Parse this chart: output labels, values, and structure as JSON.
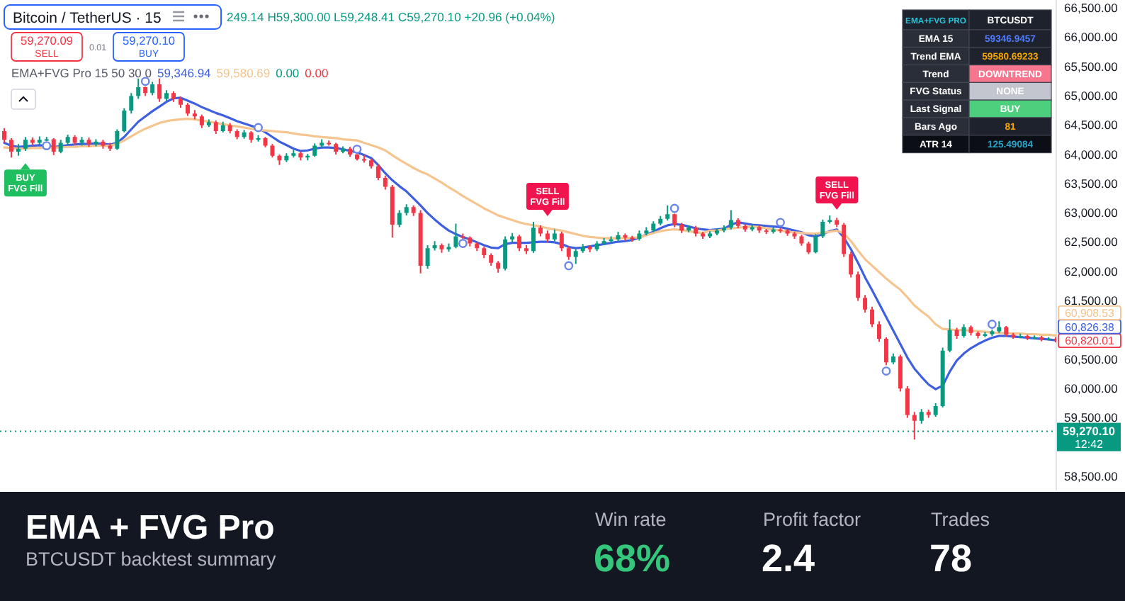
{
  "chart_data": [
    {
      "type": "candlestick",
      "title": "Bitcoin / TetherUS · 15",
      "categories": [
        null,
        null,
        null,
        null,
        null,
        null,
        null,
        null,
        null,
        null,
        null,
        null,
        null,
        null,
        null,
        null,
        null,
        null,
        null,
        null,
        null,
        null,
        null,
        null,
        null,
        null,
        null,
        null,
        null,
        null,
        null,
        null,
        null,
        null,
        null,
        null,
        null,
        null,
        null,
        null,
        null,
        null,
        null,
        null,
        null,
        null,
        null,
        null,
        null,
        null,
        null,
        null,
        null,
        null,
        null,
        null,
        null,
        null,
        null,
        null,
        null,
        null,
        null,
        null,
        null,
        null,
        null,
        null,
        null,
        null,
        null,
        null,
        null,
        null,
        null,
        null,
        null,
        null,
        null,
        null,
        null,
        null,
        null,
        null,
        null,
        null,
        null,
        null,
        null,
        null,
        null,
        null,
        null,
        null,
        null,
        null,
        null,
        null,
        null,
        null,
        null,
        null,
        null,
        null,
        null,
        null,
        null,
        null,
        null,
        null,
        null,
        null,
        null,
        null,
        null,
        null,
        null,
        null,
        null,
        null,
        null,
        null,
        null,
        null,
        null,
        null,
        null,
        null,
        null,
        null,
        null,
        null,
        null,
        null,
        null,
        null,
        null,
        null,
        null,
        null,
        null,
        null,
        null,
        null,
        null,
        null,
        null,
        null,
        null,
        null
      ],
      "ohlc": [
        [
          64400,
          64450,
          64200,
          64250
        ],
        [
          64250,
          64280,
          63950,
          64050
        ],
        [
          64050,
          64180,
          63980,
          64100
        ],
        [
          64100,
          64300,
          64060,
          64250
        ],
        [
          64250,
          64290,
          64150,
          64200
        ],
        [
          64200,
          64310,
          64170,
          64250
        ],
        [
          64250,
          64300,
          64230,
          64260
        ],
        [
          64260,
          64280,
          63990,
          64050
        ],
        [
          64050,
          64250,
          64020,
          64200
        ],
        [
          64200,
          64340,
          64170,
          64300
        ],
        [
          64300,
          64330,
          64160,
          64200
        ],
        [
          64200,
          64300,
          64150,
          64250
        ],
        [
          64250,
          64290,
          64130,
          64180
        ],
        [
          64180,
          64260,
          64140,
          64220
        ],
        [
          64220,
          64250,
          64100,
          64150
        ],
        [
          64150,
          64200,
          64060,
          64100
        ],
        [
          64100,
          64430,
          64080,
          64400
        ],
        [
          64400,
          64790,
          64380,
          64750
        ],
        [
          64750,
          65050,
          64700,
          65000
        ],
        [
          65000,
          65300,
          64950,
          65150
        ],
        [
          65150,
          65160,
          65000,
          65050
        ],
        [
          65050,
          65240,
          65010,
          65200
        ],
        [
          65200,
          65300,
          64900,
          64950
        ],
        [
          64950,
          65100,
          64920,
          65050
        ],
        [
          65050,
          65080,
          64900,
          64950
        ],
        [
          64950,
          64990,
          64800,
          64850
        ],
        [
          64850,
          64880,
          64660,
          64700
        ],
        [
          64700,
          64760,
          64600,
          64650
        ],
        [
          64650,
          64680,
          64450,
          64500
        ],
        [
          64500,
          64600,
          64470,
          64550
        ],
        [
          64550,
          64580,
          64350,
          64400
        ],
        [
          64400,
          64560,
          64380,
          64500
        ],
        [
          64500,
          64540,
          64360,
          64400
        ],
        [
          64400,
          64430,
          64260,
          64300
        ],
        [
          64300,
          64420,
          64270,
          64380
        ],
        [
          64380,
          64400,
          64200,
          64250
        ],
        [
          64250,
          64330,
          64220,
          64280
        ],
        [
          64280,
          64300,
          64120,
          64150
        ],
        [
          64150,
          64180,
          63950,
          63980
        ],
        [
          63980,
          64000,
          63820,
          63900
        ],
        [
          63900,
          64020,
          63870,
          63980
        ],
        [
          63980,
          64080,
          63950,
          64020
        ],
        [
          64020,
          64050,
          63900,
          63950
        ],
        [
          63950,
          64010,
          63900,
          63980
        ],
        [
          63980,
          64190,
          63960,
          64150
        ],
        [
          64150,
          64260,
          64120,
          64200
        ],
        [
          64200,
          64240,
          64150,
          64180
        ],
        [
          64180,
          64200,
          64000,
          64050
        ],
        [
          64050,
          64140,
          64020,
          64100
        ],
        [
          64100,
          64130,
          63960,
          64000
        ],
        [
          64000,
          64010,
          63900,
          63920
        ],
        [
          63920,
          63990,
          63860,
          63900
        ],
        [
          63900,
          63930,
          63760,
          63800
        ],
        [
          63800,
          63830,
          63560,
          63600
        ],
        [
          63600,
          63640,
          63400,
          63450
        ],
        [
          63450,
          63480,
          62580,
          62800
        ],
        [
          62800,
          63050,
          62760,
          63000
        ],
        [
          63000,
          63150,
          62960,
          63100
        ],
        [
          63100,
          63130,
          62950,
          63000
        ],
        [
          63000,
          63050,
          61970,
          62100
        ],
        [
          62100,
          62450,
          62050,
          62400
        ],
        [
          62400,
          62520,
          62360,
          62450
        ],
        [
          62450,
          62480,
          62320,
          62380
        ],
        [
          62380,
          62480,
          62340,
          62420
        ],
        [
          62420,
          62820,
          62400,
          62600
        ],
        [
          62600,
          62650,
          62560,
          62580
        ],
        [
          62580,
          62600,
          62430,
          62480
        ],
        [
          62480,
          62500,
          62350,
          62400
        ],
        [
          62400,
          62430,
          62230,
          62280
        ],
        [
          62280,
          62310,
          62100,
          62150
        ],
        [
          62150,
          62180,
          61980,
          62050
        ],
        [
          62050,
          62600,
          62020,
          62550
        ],
        [
          62550,
          62660,
          62500,
          62600
        ],
        [
          62600,
          62630,
          62350,
          62400
        ],
        [
          62400,
          62450,
          62300,
          62350
        ],
        [
          62350,
          62850,
          62320,
          62750
        ],
        [
          62750,
          62790,
          62600,
          62650
        ],
        [
          62650,
          62700,
          62500,
          62550
        ],
        [
          62550,
          62720,
          62520,
          62650
        ],
        [
          62650,
          62680,
          62350,
          62400
        ],
        [
          62400,
          62430,
          62200,
          62250
        ],
        [
          62250,
          62380,
          62130,
          62350
        ],
        [
          62350,
          62470,
          62320,
          62420
        ],
        [
          62420,
          62450,
          62330,
          62380
        ],
        [
          62380,
          62520,
          62350,
          62480
        ],
        [
          62480,
          62570,
          62450,
          62520
        ],
        [
          62520,
          62600,
          62490,
          62550
        ],
        [
          62550,
          62680,
          62520,
          62620
        ],
        [
          62620,
          62650,
          62530,
          62580
        ],
        [
          62580,
          62610,
          62510,
          62560
        ],
        [
          62560,
          62700,
          62530,
          62650
        ],
        [
          62650,
          62760,
          62620,
          62700
        ],
        [
          62700,
          62860,
          62670,
          62820
        ],
        [
          62820,
          62950,
          62790,
          62900
        ],
        [
          62900,
          63130,
          62870,
          62980
        ],
        [
          62980,
          62990,
          62760,
          62800
        ],
        [
          62800,
          62830,
          62660,
          62700
        ],
        [
          62700,
          62790,
          62670,
          62750
        ],
        [
          62750,
          62780,
          62600,
          62650
        ],
        [
          62650,
          62680,
          62560,
          62600
        ],
        [
          62600,
          62690,
          62570,
          62650
        ],
        [
          62650,
          62740,
          62620,
          62700
        ],
        [
          62700,
          62790,
          62670,
          62750
        ],
        [
          62750,
          63050,
          62720,
          62880
        ],
        [
          62880,
          62910,
          62740,
          62780
        ],
        [
          62780,
          62810,
          62680,
          62720
        ],
        [
          62720,
          62800,
          62690,
          62760
        ],
        [
          62760,
          62790,
          62660,
          62700
        ],
        [
          62700,
          62730,
          62640,
          62680
        ],
        [
          62680,
          62760,
          62650,
          62720
        ],
        [
          62720,
          62750,
          62660,
          62700
        ],
        [
          62700,
          62730,
          62610,
          62650
        ],
        [
          62650,
          62680,
          62560,
          62600
        ],
        [
          62600,
          62630,
          62440,
          62480
        ],
        [
          62480,
          62510,
          62300,
          62330
        ],
        [
          62330,
          62640,
          62310,
          62600
        ],
        [
          62600,
          62890,
          62570,
          62850
        ],
        [
          62850,
          62960,
          62820,
          62880
        ],
        [
          62880,
          62920,
          62760,
          62800
        ],
        [
          62800,
          62830,
          62250,
          62300
        ],
        [
          62300,
          62340,
          61900,
          61950
        ],
        [
          61950,
          62000,
          61500,
          61550
        ],
        [
          61550,
          61600,
          61300,
          61350
        ],
        [
          61350,
          61400,
          61050,
          61100
        ],
        [
          61100,
          61150,
          60800,
          60850
        ],
        [
          60850,
          60880,
          60400,
          60450
        ],
        [
          60450,
          60600,
          60420,
          60550
        ],
        [
          60550,
          60580,
          59950,
          60000
        ],
        [
          60000,
          60040,
          59500,
          59550
        ],
        [
          59550,
          59600,
          59130,
          59450
        ],
        [
          59450,
          59650,
          59400,
          59600
        ],
        [
          59600,
          59640,
          59500,
          59550
        ],
        [
          59550,
          59750,
          59520,
          59700
        ],
        [
          59700,
          60700,
          59680,
          60650
        ],
        [
          60650,
          61180,
          60620,
          61000
        ],
        [
          61000,
          61040,
          60850,
          60900
        ],
        [
          60900,
          61100,
          60870,
          61050
        ],
        [
          61050,
          61080,
          60910,
          60950
        ],
        [
          60950,
          60980,
          60860,
          60900
        ],
        [
          60900,
          60970,
          60880,
          60930
        ],
        [
          60930,
          61010,
          60900,
          60980
        ],
        [
          60980,
          61150,
          60950,
          61050
        ],
        [
          61050,
          61070,
          60890,
          60920
        ],
        [
          60920,
          60950,
          60850,
          60880
        ],
        [
          60880,
          60940,
          60860,
          60900
        ],
        [
          60900,
          60920,
          60830,
          60860
        ],
        [
          60860,
          60910,
          60840,
          60880
        ],
        [
          60880,
          60900,
          60810,
          60840
        ],
        [
          60840,
          60880,
          60820,
          60850
        ],
        [
          60850,
          60880,
          60790,
          60820.01
        ]
      ],
      "series": [
        {
          "type": "line",
          "color": "#3d5fe0",
          "values": [
            64200,
            64150,
            64130,
            64140,
            64150,
            64160,
            64150,
            64130,
            64140,
            64160,
            64170,
            64180,
            64180,
            64190,
            64180,
            64170,
            64200,
            64300,
            64430,
            64560,
            64650,
            64740,
            64820,
            64900,
            64960,
            64970,
            64920,
            64870,
            64810,
            64760,
            64710,
            64670,
            64620,
            64570,
            64530,
            64490,
            64450,
            64380,
            64300,
            64220,
            64160,
            64100,
            64060,
            64070,
            64100,
            64120,
            64120,
            64110,
            64090,
            64060,
            64040,
            63990,
            63940,
            63820,
            63680,
            63560,
            63460,
            63370,
            63250,
            63130,
            63000,
            62890,
            62790,
            62700,
            62640,
            62590,
            62550,
            62500,
            62450,
            62410,
            62400,
            62470,
            62490,
            62490,
            62490,
            62500,
            62510,
            62510,
            62500,
            62470,
            62420,
            62400,
            62410,
            62430,
            62450,
            62470,
            62490,
            62510,
            62520,
            62540,
            62580,
            62630,
            62680,
            62740,
            62790,
            62810,
            62800,
            62770,
            62740,
            62720,
            62710,
            62720,
            62730,
            62800,
            62840,
            62820,
            62800,
            62790,
            62780,
            62770,
            62760,
            62730,
            62700,
            62670,
            62620,
            62600,
            62640,
            62690,
            62720,
            62580,
            62380,
            62150,
            61900,
            61680,
            61450,
            61220,
            60990,
            60760,
            60530,
            60340,
            60200,
            60070,
            59990,
            60050,
            60290,
            60480,
            60600,
            60690,
            60760,
            60820,
            60870,
            60900,
            60900,
            60890,
            60880,
            60870,
            60860,
            60850,
            60840,
            60826.38
          ]
        },
        {
          "type": "line",
          "color": "#f5c48f",
          "values": [
            64120,
            64110,
            64100,
            64100,
            64110,
            64110,
            64120,
            64120,
            64120,
            64130,
            64130,
            64140,
            64140,
            64150,
            64150,
            64150,
            64180,
            64240,
            64310,
            64380,
            64440,
            64490,
            64540,
            64570,
            64590,
            64600,
            64610,
            64600,
            64580,
            64560,
            64540,
            64520,
            64500,
            64480,
            64460,
            64440,
            64420,
            64410,
            64400,
            64390,
            64380,
            64360,
            64340,
            64330,
            64310,
            64300,
            64290,
            64280,
            64260,
            64250,
            64240,
            64200,
            64160,
            64120,
            64070,
            63990,
            63910,
            63840,
            63770,
            63710,
            63660,
            63590,
            63520,
            63440,
            63370,
            63290,
            63220,
            63150,
            63080,
            63020,
            62960,
            62920,
            62880,
            62840,
            62810,
            62790,
            62770,
            62740,
            62720,
            62700,
            62670,
            62640,
            62610,
            62590,
            62580,
            62570,
            62570,
            62570,
            62570,
            62580,
            62580,
            62620,
            62660,
            62690,
            62710,
            62720,
            62710,
            62690,
            62670,
            62660,
            62700,
            62700,
            62720,
            62740,
            62750,
            62760,
            62770,
            62760,
            62740,
            62720,
            62700,
            62680,
            62670,
            62660,
            62650,
            62650,
            62660,
            62680,
            62700,
            62650,
            62520,
            62360,
            62210,
            62100,
            61990,
            61880,
            61780,
            61690,
            61560,
            61420,
            61320,
            61230,
            61100,
            61020,
            61010,
            61000,
            61000,
            60990,
            60980,
            60970,
            60960,
            60950,
            60950,
            60940,
            60940,
            60930,
            60930,
            60920,
            60920,
            60908.53
          ]
        },
        {
          "type": "scatter",
          "color": "#6a85e6",
          "marker": "circle",
          "values": [
            null,
            null,
            null,
            null,
            null,
            null,
            64150,
            null,
            null,
            null,
            null,
            null,
            null,
            null,
            null,
            null,
            null,
            null,
            null,
            null,
            65250,
            null,
            null,
            null,
            null,
            null,
            null,
            null,
            null,
            null,
            null,
            null,
            null,
            null,
            null,
            null,
            64460,
            null,
            null,
            null,
            null,
            null,
            null,
            null,
            null,
            null,
            null,
            null,
            null,
            null,
            64090,
            null,
            null,
            null,
            null,
            null,
            null,
            null,
            null,
            null,
            null,
            null,
            null,
            null,
            null,
            62480,
            null,
            null,
            null,
            null,
            null,
            null,
            null,
            null,
            null,
            null,
            null,
            null,
            null,
            null,
            62100,
            null,
            null,
            null,
            null,
            null,
            null,
            null,
            null,
            null,
            null,
            null,
            null,
            null,
            null,
            63080,
            null,
            null,
            null,
            null,
            null,
            null,
            null,
            null,
            null,
            null,
            null,
            null,
            null,
            null,
            62840,
            null,
            null,
            null,
            null,
            null,
            null,
            null,
            null,
            null,
            null,
            null,
            null,
            null,
            null,
            60300,
            null,
            null,
            null,
            null,
            null,
            null,
            null,
            null,
            null,
            null,
            null,
            null,
            null,
            null,
            61100,
            null,
            null,
            null,
            null,
            null,
            null,
            null,
            null,
            null
          ]
        }
      ],
      "ylim": [
        58260,
        66640
      ],
      "yticks": [
        {
          "value": 58500,
          "label": "58,500.00"
        },
        {
          "value": 59500,
          "label": "59,500.00"
        },
        {
          "value": 60000,
          "label": "60,000.00"
        },
        {
          "value": 60500,
          "label": "60,500.00"
        },
        {
          "value": 61500,
          "label": "61,500.00"
        },
        {
          "value": 62000,
          "label": "62,000.00"
        },
        {
          "value": 62500,
          "label": "62,500.00"
        },
        {
          "value": 63000,
          "label": "63,000.00"
        },
        {
          "value": 63500,
          "label": "63,500.00"
        },
        {
          "value": 64000,
          "label": "64,000.00"
        },
        {
          "value": 64500,
          "label": "64,500.00"
        },
        {
          "value": 65000,
          "label": "65,000.00"
        },
        {
          "value": 65500,
          "label": "65,500.00"
        },
        {
          "value": 66000,
          "label": "66,000.00"
        },
        {
          "value": 66500,
          "label": "66,500.00"
        }
      ],
      "tick_labels": "y",
      "ref_lines": [
        {
          "axis": "y",
          "value": 59270.1,
          "label": "59,270.10",
          "color": "#089981",
          "line_style": "dotted"
        }
      ],
      "annotations": [
        "249.14 H59,300.00 L59,248.41 C59,270.10 +20.96 (+0.04%)",
        "59,270.09",
        "SELL",
        "0.01",
        "59,270.10",
        "BUY",
        "EMA+FVG Pro 15 50 30 0",
        "59,346.94",
        "59,580.69",
        "0.00",
        "0.00",
        "EMA+FVG PRO",
        "BTCUSDT",
        "EMA 15",
        "59346.9457",
        "Trend EMA",
        "59580.69233",
        "Trend",
        "DOWNTREND",
        "FVG Status",
        "NONE",
        "Last Signal",
        "BUY",
        "Bars Ago",
        "81",
        "ATR 14",
        "125.49084",
        "BUY FVG Fill",
        "SELL FVG Fill",
        "SELL FVG Fill",
        "60,908.53",
        "60,826.38",
        "60,820.01",
        "12:42"
      ]
    },
    {
      "type": "other",
      "title": "EMA + FVG Pro",
      "subtitle": "BTCUSDT backtest summary",
      "annotations": [
        "Win rate",
        "68%",
        "Profit factor",
        "2.4",
        "Trades",
        "78"
      ]
    }
  ]
}
